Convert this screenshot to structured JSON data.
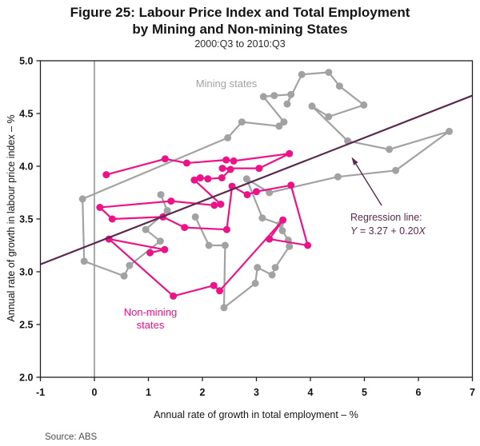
{
  "header": {
    "title_line1": "Figure 25: Labour Price Index and Total Employment",
    "title_line2": "by Mining and Non-mining States",
    "subtitle": "2000:Q3 to 2010:Q3"
  },
  "source": {
    "text": "Source: ABS"
  },
  "chart_data": {
    "type": "line",
    "subtype": "connected-scatter",
    "title": "Figure 25: Labour Price Index and Total Employment by Mining and Non-mining States",
    "period": "2000:Q3 to 2010:Q3",
    "xlabel": "Annual rate of growth in total employment – %",
    "ylabel": "Annual rate of growth in labour price index – %",
    "xlim": [
      -1,
      7
    ],
    "ylim": [
      2.0,
      5.0
    ],
    "grid": false,
    "x_ticks": {
      "values": [
        -1,
        0,
        1,
        2,
        3,
        4,
        5,
        6,
        7
      ],
      "labels": [
        "-1",
        "0",
        "1",
        "2",
        "3",
        "4",
        "5",
        "6",
        "7"
      ]
    },
    "y_ticks": {
      "values": [
        2.0,
        2.5,
        3.0,
        3.5,
        4.0,
        4.5,
        5.0
      ],
      "labels": [
        "2.0",
        "2.5",
        "3.0",
        "3.5",
        "4.0",
        "4.5",
        "5.0"
      ]
    },
    "zero_line_x": 0,
    "colors": {
      "mining": "#a2a2a4",
      "non_mining": "#ee1289",
      "regression": "#59294e",
      "axis": "#231f20",
      "zero_line": "#6d6e71"
    },
    "series": [
      {
        "name": "Mining states",
        "label_lines": [
          "Mining states"
        ],
        "color_key": "mining",
        "points": [
          [
            1.23,
            3.73
          ],
          [
            1.35,
            3.58
          ],
          [
            0.95,
            3.4
          ],
          [
            1.22,
            3.29
          ],
          [
            0.65,
            3.06
          ],
          [
            0.55,
            2.96
          ],
          [
            -0.19,
            3.1
          ],
          [
            -0.22,
            3.69
          ],
          [
            2.47,
            4.27
          ],
          [
            2.73,
            4.42
          ],
          [
            3.42,
            4.38
          ],
          [
            3.51,
            4.42
          ],
          [
            3.13,
            4.66
          ],
          [
            3.33,
            4.67
          ],
          [
            3.64,
            4.68
          ],
          [
            3.57,
            4.59
          ],
          [
            3.84,
            4.87
          ],
          [
            4.34,
            4.89
          ],
          [
            4.54,
            4.76
          ],
          [
            4.99,
            4.58
          ],
          [
            4.34,
            4.47
          ],
          [
            4.03,
            4.57
          ],
          [
            4.69,
            4.24
          ],
          [
            5.46,
            4.16
          ],
          [
            6.57,
            4.33
          ],
          [
            5.58,
            3.96
          ],
          [
            4.51,
            3.9
          ],
          [
            3.24,
            3.75
          ],
          [
            2.82,
            3.88
          ],
          [
            3.11,
            3.51
          ],
          [
            3.44,
            3.45
          ],
          [
            3.48,
            3.39
          ],
          [
            3.59,
            3.3
          ],
          [
            3.61,
            3.24
          ],
          [
            3.35,
            3.04
          ],
          [
            3.29,
            2.97
          ],
          [
            3.02,
            3.04
          ],
          [
            2.98,
            2.89
          ],
          [
            2.4,
            2.66
          ],
          [
            2.42,
            3.25
          ],
          [
            2.12,
            3.25
          ],
          [
            1.87,
            3.52
          ]
        ]
      },
      {
        "name": "Non-mining states",
        "label_lines": [
          "Non-mining",
          "states"
        ],
        "color_key": "non_mining",
        "points": [
          [
            1.03,
            3.18
          ],
          [
            1.3,
            3.21
          ],
          [
            0.27,
            3.31
          ],
          [
            1.46,
            2.77
          ],
          [
            2.21,
            2.87
          ],
          [
            2.32,
            2.82
          ],
          [
            3.49,
            3.49
          ],
          [
            3.24,
            3.31
          ],
          [
            3.95,
            3.25
          ],
          [
            3.64,
            3.82
          ],
          [
            3.0,
            3.76
          ],
          [
            2.83,
            3.73
          ],
          [
            2.55,
            3.81
          ],
          [
            2.45,
            3.4
          ],
          [
            1.67,
            3.42
          ],
          [
            1.27,
            3.52
          ],
          [
            0.33,
            3.5
          ],
          [
            0.1,
            3.61
          ],
          [
            1.42,
            3.67
          ],
          [
            2.22,
            3.63
          ],
          [
            2.34,
            3.64
          ],
          [
            1.85,
            3.87
          ],
          [
            1.96,
            3.89
          ],
          [
            2.1,
            3.88
          ],
          [
            2.36,
            3.89
          ],
          [
            2.52,
            3.97
          ],
          [
            2.37,
            3.98
          ],
          [
            3.05,
            3.98
          ],
          [
            3.61,
            4.12
          ],
          [
            2.58,
            4.05
          ],
          [
            2.44,
            4.06
          ],
          [
            1.71,
            4.03
          ],
          [
            1.31,
            4.07
          ],
          [
            0.22,
            3.92
          ]
        ]
      }
    ],
    "regression": {
      "label": "Regression line:",
      "eq_y": "Y",
      "eq_mid": " = 3.27 + 0.20",
      "eq_x": "X",
      "intercept": 3.27,
      "slope": 0.2
    }
  }
}
